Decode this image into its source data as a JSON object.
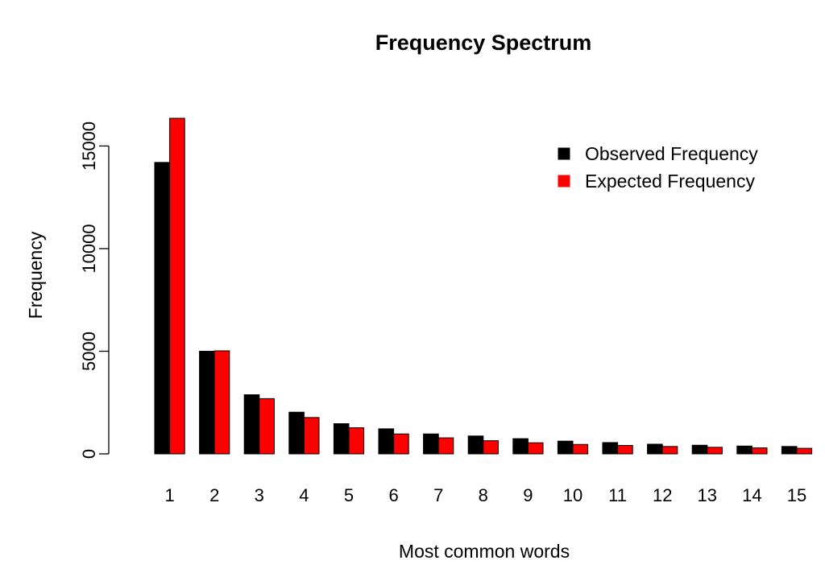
{
  "chart_data": {
    "type": "bar",
    "title": "Frequency Spectrum",
    "xlabel": "Most common words",
    "ylabel": "Frequency",
    "categories": [
      "1",
      "2",
      "3",
      "4",
      "5",
      "6",
      "7",
      "8",
      "9",
      "10",
      "11",
      "12",
      "13",
      "14",
      "15"
    ],
    "series": [
      {
        "name": "Observed Frequency",
        "color": "#000000",
        "values": [
          14200,
          5000,
          2880,
          2030,
          1470,
          1220,
          970,
          870,
          740,
          620,
          550,
          470,
          420,
          380,
          360
        ]
      },
      {
        "name": "Expected Frequency",
        "color": "#ff0000",
        "values": [
          16350,
          5020,
          2690,
          1770,
          1270,
          970,
          780,
          640,
          540,
          460,
          410,
          360,
          320,
          290,
          270
        ]
      }
    ],
    "yticks": [
      0,
      5000,
      10000,
      15000
    ],
    "ytick_labels": [
      "0",
      "5000",
      "10000",
      "15000"
    ],
    "ylim": [
      0,
      16350
    ],
    "grid": false,
    "legend_position": "top-right"
  }
}
